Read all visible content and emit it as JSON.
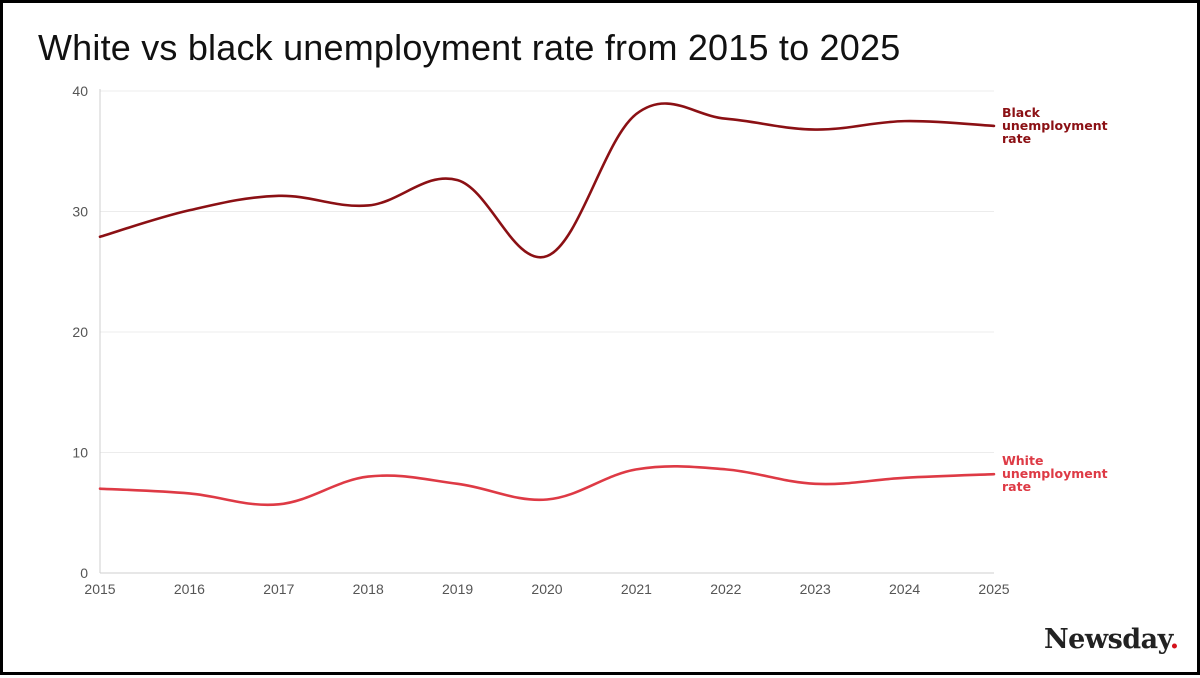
{
  "chart_data": {
    "type": "line",
    "title": "White vs black unemployment rate from 2015 to 2025",
    "x": [
      2015,
      2016,
      2017,
      2018,
      2019,
      2020,
      2021,
      2022,
      2023,
      2024,
      2025
    ],
    "ylim": [
      0,
      40
    ],
    "yticks": [
      0,
      10,
      20,
      30,
      40
    ],
    "grid": true,
    "legend": "inline-right",
    "series": [
      {
        "name": "Black unemployment rate",
        "label_lines": [
          "Black",
          "unemployment",
          "rate"
        ],
        "color": "#8b1014",
        "values": [
          27.9,
          30.1,
          31.3,
          30.5,
          32.6,
          26.3,
          38.1,
          37.7,
          36.8,
          37.5,
          37.1
        ]
      },
      {
        "name": "White unemployment rate",
        "label_lines": [
          "White",
          "unemployment",
          "rate"
        ],
        "color": "#de3a45",
        "values": [
          7.0,
          6.6,
          5.7,
          8.0,
          7.4,
          6.1,
          8.6,
          8.6,
          7.4,
          7.9,
          8.2
        ]
      }
    ]
  },
  "brand": {
    "name": "Newsday",
    "dot": "."
  }
}
